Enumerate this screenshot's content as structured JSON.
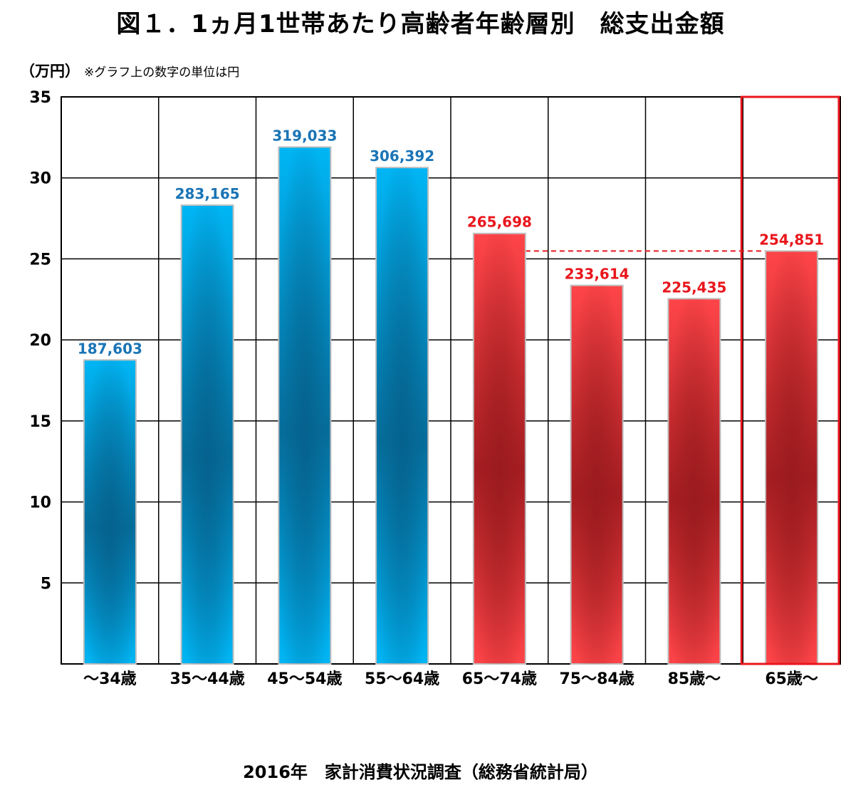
{
  "title": "図１．1ヵ月1世帯あたり高齢者年齢層別　総支出金額",
  "unit_label": "（万円）",
  "note": "※グラフ上の数字の単位は円",
  "source": "2016年　家計消費状況調査（総務省統計局）",
  "colors": {
    "blue_light": "#00b6f5",
    "blue_dark": "#06709f",
    "red_light": "#ff4549",
    "red_dark": "#a81e22",
    "blue_label": "#1a74b6",
    "red_label": "#e8161c",
    "highlight_box": "#e8161c"
  },
  "chart_data": {
    "type": "bar",
    "categories": [
      "～34歳",
      "35～44歳",
      "45～54歳",
      "55～64歳",
      "65～74歳",
      "75～84歳",
      "85歳～",
      "65歳～"
    ],
    "values": [
      187603,
      283165,
      319033,
      306392,
      265698,
      233614,
      225435,
      254851
    ],
    "data_labels": [
      "187,603",
      "283,165",
      "319,033",
      "306,392",
      "265,698",
      "233,614",
      "225,435",
      "254,851"
    ],
    "bar_colors": [
      "blue",
      "blue",
      "blue",
      "blue",
      "red",
      "red",
      "red",
      "red"
    ],
    "y_ticks": [
      5,
      10,
      15,
      20,
      25,
      30,
      35
    ],
    "ylim": [
      0,
      35
    ],
    "y_unit_divisor": 10000,
    "grid": true,
    "reference_line": {
      "value": 254851,
      "style": "dashed",
      "from_category": "65～74歳",
      "to_category": "65歳～"
    },
    "highlighted_category": "65歳～"
  }
}
